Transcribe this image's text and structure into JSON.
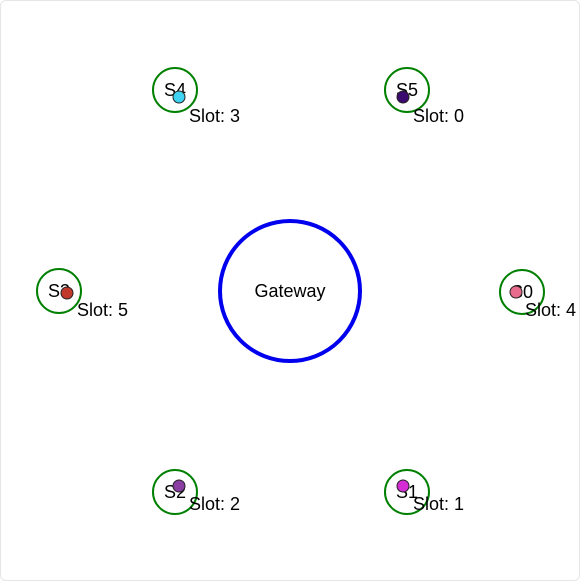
{
  "gateway": {
    "label": "Gateway",
    "stroke_color": "#0000ee"
  },
  "node_ring_color": "#008000",
  "nodes": [
    {
      "id": "S0",
      "label": "S0",
      "slot_text": "Slot: 4",
      "dot_color": "#e86a8c"
    },
    {
      "id": "S1",
      "label": "S1",
      "slot_text": "Slot: 1",
      "dot_color": "#d52bd5"
    },
    {
      "id": "S2",
      "label": "S2",
      "slot_text": "Slot: 2",
      "dot_color": "#8a3ea4"
    },
    {
      "id": "S3",
      "label": "S3",
      "slot_text": "Slot: 5",
      "dot_color": "#c0392b"
    },
    {
      "id": "S4",
      "label": "S4",
      "slot_text": "Slot: 3",
      "dot_color": "#3fd2f2"
    },
    {
      "id": "S5",
      "label": "S5",
      "slot_text": "Slot: 0",
      "dot_color": "#3a0a6e"
    }
  ]
}
